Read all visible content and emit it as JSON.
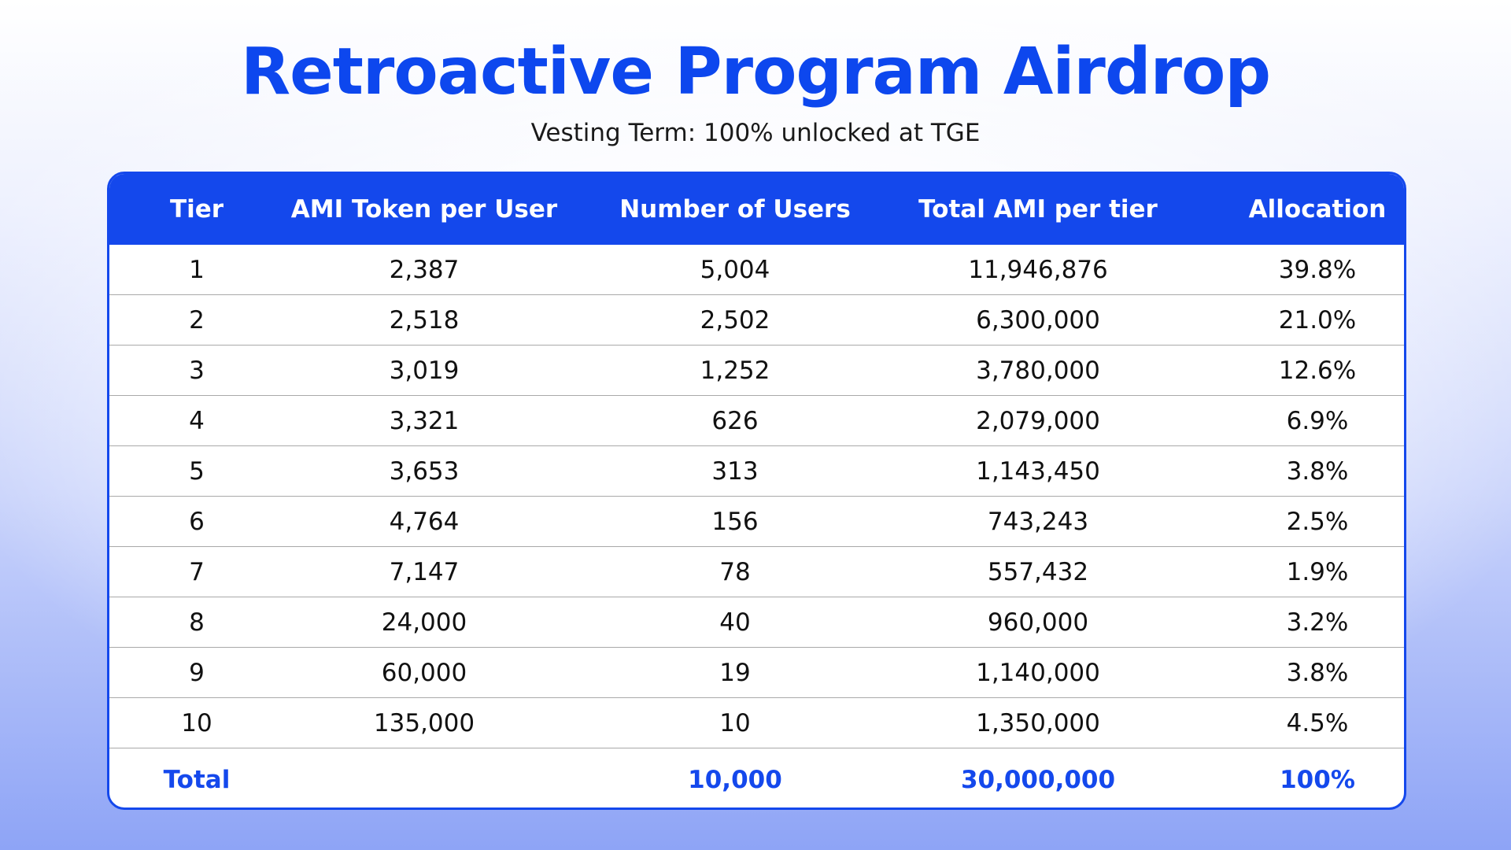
{
  "title": "Retroactive Program Airdrop",
  "subtitle": "Vesting Term: 100% unlocked at TGE",
  "colors": {
    "accent": "#1448ec",
    "title": "#0d47ee",
    "header_text": "#ffffff",
    "body_text": "#111111"
  },
  "table": {
    "headers": [
      "Tier",
      "AMI Token per User",
      "Number of Users",
      "Total AMI per tier",
      "Allocation"
    ],
    "rows": [
      [
        "1",
        "2,387",
        "5,004",
        "11,946,876",
        "39.8%"
      ],
      [
        "2",
        "2,518",
        "2,502",
        "6,300,000",
        "21.0%"
      ],
      [
        "3",
        "3,019",
        "1,252",
        "3,780,000",
        "12.6%"
      ],
      [
        "4",
        "3,321",
        "626",
        "2,079,000",
        "6.9%"
      ],
      [
        "5",
        "3,653",
        "313",
        "1,143,450",
        "3.8%"
      ],
      [
        "6",
        "4,764",
        "156",
        "743,243",
        "2.5%"
      ],
      [
        "7",
        "7,147",
        "78",
        "557,432",
        "1.9%"
      ],
      [
        "8",
        "24,000",
        "40",
        "960,000",
        "3.2%"
      ],
      [
        "9",
        "60,000",
        "19",
        "1,140,000",
        "3.8%"
      ],
      [
        "10",
        "135,000",
        "10",
        "1,350,000",
        "4.5%"
      ]
    ],
    "total": [
      "Total",
      "",
      "10,000",
      "30,000,000",
      "100%"
    ]
  }
}
